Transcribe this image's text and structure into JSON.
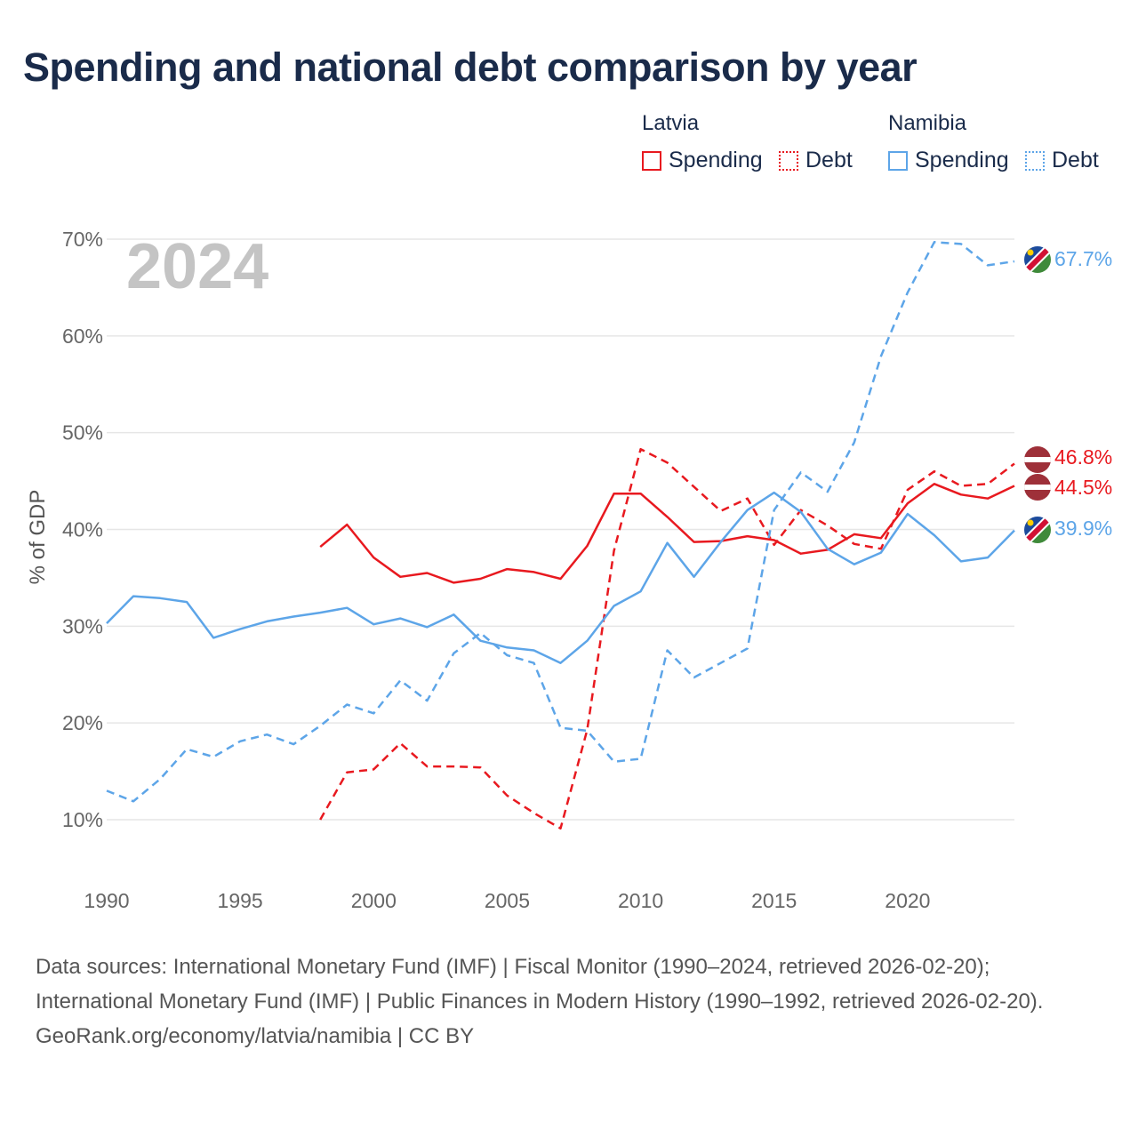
{
  "title": "Spending and national debt comparison by year",
  "legend": {
    "latvia": {
      "name": "Latvia",
      "spending": "Spending",
      "debt": "Debt",
      "color": "#e8191f"
    },
    "namibia": {
      "name": "Namibia",
      "spending": "Spending",
      "debt": "Debt",
      "color": "#5da5e8"
    }
  },
  "year_label": "2024",
  "footer": {
    "sources": "Data sources: International Monetary Fund (IMF) | Fiscal Monitor (1990–2024, retrieved 2026-02-20); International Monetary Fund (IMF) | Public Finances in Modern History (1990–1992, retrieved 2026-02-20).",
    "credit": "GeoRank.org/economy/latvia/namibia | CC BY"
  },
  "chart_data": {
    "type": "line",
    "ylabel": "% of GDP",
    "xlabel": "",
    "xlim": [
      1990,
      2024
    ],
    "ylim": [
      5,
      72
    ],
    "x_ticks": [
      1990,
      1995,
      2000,
      2005,
      2010,
      2015,
      2020
    ],
    "x_tick_labels": [
      "1990",
      "1995",
      "2000",
      "2005",
      "2010",
      "2015",
      "2020"
    ],
    "y_ticks": [
      10,
      20,
      30,
      40,
      50,
      60,
      70
    ],
    "y_tick_labels": [
      "10%",
      "20%",
      "30%",
      "40%",
      "50%",
      "60%",
      "70%"
    ],
    "series": [
      {
        "name": "Latvia Spending",
        "country": "Latvia",
        "color": "#e8191f",
        "dash": false,
        "x": [
          1998,
          1999,
          2000,
          2001,
          2002,
          2003,
          2004,
          2005,
          2006,
          2007,
          2008,
          2009,
          2010,
          2011,
          2012,
          2013,
          2014,
          2015,
          2016,
          2017,
          2018,
          2019,
          2020,
          2021,
          2022,
          2023,
          2024
        ],
        "values": [
          38.2,
          40.5,
          37.1,
          35.1,
          35.5,
          34.5,
          34.9,
          35.9,
          35.6,
          34.9,
          38.3,
          43.7,
          43.7,
          41.3,
          38.7,
          38.8,
          39.3,
          38.9,
          37.5,
          37.9,
          39.5,
          39.1,
          42.7,
          44.7,
          43.6,
          43.2,
          44.5
        ],
        "end_label": "44.5%"
      },
      {
        "name": "Latvia Debt",
        "country": "Latvia",
        "color": "#e8191f",
        "dash": true,
        "x": [
          1998,
          1999,
          2000,
          2001,
          2002,
          2003,
          2004,
          2005,
          2006,
          2007,
          2008,
          2009,
          2010,
          2011,
          2012,
          2013,
          2014,
          2015,
          2016,
          2017,
          2018,
          2019,
          2020,
          2021,
          2022,
          2023,
          2024
        ],
        "values": [
          10.0,
          14.9,
          15.2,
          17.9,
          15.5,
          15.5,
          15.4,
          12.5,
          10.7,
          9.1,
          19.3,
          37.8,
          48.3,
          46.9,
          44.4,
          41.9,
          43.2,
          38.4,
          42.0,
          40.4,
          38.5,
          38.0,
          44.1,
          46.0,
          44.5,
          44.7,
          46.8
        ],
        "end_label": "46.8%"
      },
      {
        "name": "Namibia Spending",
        "country": "Namibia",
        "color": "#5da5e8",
        "dash": false,
        "x": [
          1990,
          1991,
          1992,
          1993,
          1994,
          1995,
          1996,
          1997,
          1998,
          1999,
          2000,
          2001,
          2002,
          2003,
          2004,
          2005,
          2006,
          2007,
          2008,
          2009,
          2010,
          2011,
          2012,
          2013,
          2014,
          2015,
          2016,
          2017,
          2018,
          2019,
          2020,
          2021,
          2022,
          2023,
          2024
        ],
        "values": [
          30.3,
          33.1,
          32.9,
          32.5,
          28.8,
          29.7,
          30.5,
          31.0,
          31.4,
          31.9,
          30.2,
          30.8,
          29.9,
          31.2,
          28.5,
          27.8,
          27.5,
          26.2,
          28.5,
          32.1,
          33.6,
          38.6,
          35.1,
          38.7,
          42.0,
          43.8,
          41.8,
          38.0,
          36.4,
          37.6,
          41.6,
          39.4,
          36.7,
          37.1,
          39.9
        ],
        "end_label": "39.9%"
      },
      {
        "name": "Namibia Debt",
        "country": "Namibia",
        "color": "#5da5e8",
        "dash": true,
        "x": [
          1990,
          1991,
          1992,
          1993,
          1994,
          1995,
          1996,
          1997,
          1998,
          1999,
          2000,
          2001,
          2002,
          2003,
          2004,
          2005,
          2006,
          2007,
          2008,
          2009,
          2010,
          2011,
          2012,
          2013,
          2014,
          2015,
          2016,
          2017,
          2018,
          2019,
          2020,
          2021,
          2022,
          2023,
          2024
        ],
        "values": [
          13.0,
          11.9,
          14.2,
          17.3,
          16.5,
          18.1,
          18.8,
          17.8,
          19.7,
          21.9,
          21.0,
          24.4,
          22.3,
          27.2,
          29.3,
          27.0,
          26.2,
          19.5,
          19.2,
          16.0,
          16.3,
          27.5,
          24.7,
          26.2,
          27.7,
          42.0,
          45.9,
          43.9,
          49.0,
          57.9,
          64.5,
          69.7,
          69.5,
          67.3,
          67.7
        ],
        "end_label": "67.7%"
      }
    ]
  }
}
